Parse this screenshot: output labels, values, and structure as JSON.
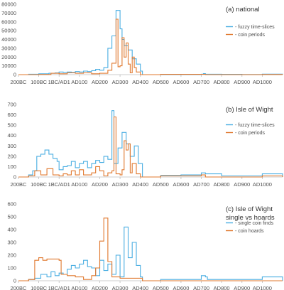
{
  "colors": {
    "blue": "#4aaee2",
    "orange": "#e0782e",
    "axis": "#bdbdbd",
    "text": "#4d4d4d"
  },
  "chart_data": [
    {
      "type": "line",
      "title": "(a) national",
      "title_line2": "",
      "x_tick_labels": [
        "200BC",
        "100BC",
        "1BC/AD1",
        "AD100",
        "AD200",
        "AD300",
        "AD400",
        "AD500",
        "AD600",
        "AD700",
        "AD800",
        "AD900",
        "AD1000"
      ],
      "x_range": [
        -200,
        1100
      ],
      "ylim": [
        0,
        80000
      ],
      "y_ticks": [
        0,
        10000,
        20000,
        30000,
        40000,
        50000,
        60000,
        70000,
        80000
      ],
      "legend_position": "right",
      "series": [
        {
          "name": "- fuzzy time-slices",
          "color": "#4aaee2",
          "points": [
            [
              -200,
              0
            ],
            [
              -150,
              500
            ],
            [
              -100,
              1000
            ],
            [
              -50,
              1500
            ],
            [
              -20,
              2000
            ],
            [
              0,
              3000
            ],
            [
              20,
              2500
            ],
            [
              40,
              3000
            ],
            [
              60,
              2500
            ],
            [
              80,
              3500
            ],
            [
              100,
              3000
            ],
            [
              120,
              4000
            ],
            [
              140,
              3500
            ],
            [
              160,
              4500
            ],
            [
              180,
              6000
            ],
            [
              200,
              5000
            ],
            [
              220,
              8000
            ],
            [
              240,
              30000
            ],
            [
              260,
              44000
            ],
            [
              280,
              73000
            ],
            [
              300,
              52000
            ],
            [
              310,
              40000
            ],
            [
              320,
              33000
            ],
            [
              340,
              28000
            ],
            [
              360,
              18000
            ],
            [
              380,
              12000
            ],
            [
              400,
              4000
            ],
            [
              410,
              0
            ],
            [
              500,
              200
            ],
            [
              600,
              200
            ],
            [
              700,
              500
            ],
            [
              710,
              1200
            ],
            [
              720,
              500
            ],
            [
              800,
              300
            ],
            [
              900,
              200
            ],
            [
              1000,
              600
            ],
            [
              1100,
              0
            ]
          ]
        },
        {
          "name": "- coin periods",
          "color": "#e0782e",
          "points": [
            [
              -200,
              0
            ],
            [
              -100,
              200
            ],
            [
              -40,
              1500
            ],
            [
              0,
              1000
            ],
            [
              40,
              2000
            ],
            [
              80,
              1500
            ],
            [
              120,
              2000
            ],
            [
              160,
              1000
            ],
            [
              200,
              1500
            ],
            [
              240,
              5000
            ],
            [
              260,
              13000
            ],
            [
              280,
              63000
            ],
            [
              290,
              9000
            ],
            [
              300,
              10000
            ],
            [
              310,
              42000
            ],
            [
              320,
              20000
            ],
            [
              330,
              36000
            ],
            [
              340,
              12000
            ],
            [
              350,
              2000
            ],
            [
              360,
              20000
            ],
            [
              370,
              8000
            ],
            [
              380,
              3000
            ],
            [
              400,
              0
            ],
            [
              500,
              300
            ],
            [
              700,
              400
            ],
            [
              720,
              0
            ],
            [
              1000,
              200
            ],
            [
              1100,
              0
            ]
          ]
        }
      ]
    },
    {
      "type": "line",
      "title": "(b) Isle of Wight",
      "title_line2": "",
      "x_tick_labels": [
        "200BC",
        "100BC",
        "1BC/AD1",
        "AD100",
        "AD200",
        "AD300",
        "AD400",
        "AD500",
        "AD600",
        "AD700",
        "AD800",
        "AD900",
        "AD1000"
      ],
      "x_range": [
        -200,
        1100
      ],
      "ylim": [
        0,
        700
      ],
      "y_ticks": [
        0,
        100,
        200,
        300,
        400,
        500,
        600,
        700
      ],
      "legend_position": "right",
      "series": [
        {
          "name": "- fuzzy time-slices",
          "color": "#4aaee2",
          "points": [
            [
              -200,
              0
            ],
            [
              -150,
              20
            ],
            [
              -130,
              60
            ],
            [
              -110,
              200
            ],
            [
              -90,
              220
            ],
            [
              -70,
              260
            ],
            [
              -50,
              220
            ],
            [
              -30,
              180
            ],
            [
              -10,
              150
            ],
            [
              0,
              70
            ],
            [
              20,
              100
            ],
            [
              40,
              110
            ],
            [
              60,
              150
            ],
            [
              80,
              90
            ],
            [
              100,
              130
            ],
            [
              120,
              150
            ],
            [
              140,
              90
            ],
            [
              160,
              130
            ],
            [
              180,
              160
            ],
            [
              200,
              140
            ],
            [
              220,
              200
            ],
            [
              240,
              170
            ],
            [
              260,
              640
            ],
            [
              270,
              130
            ],
            [
              290,
              280
            ],
            [
              310,
              430
            ],
            [
              330,
              320
            ],
            [
              350,
              200
            ],
            [
              370,
              300
            ],
            [
              390,
              130
            ],
            [
              410,
              0
            ],
            [
              500,
              15
            ],
            [
              600,
              20
            ],
            [
              700,
              40
            ],
            [
              720,
              30
            ],
            [
              800,
              10
            ],
            [
              900,
              10
            ],
            [
              1000,
              30
            ],
            [
              1100,
              0
            ]
          ]
        },
        {
          "name": "- coin periods",
          "color": "#e0782e",
          "points": [
            [
              -200,
              0
            ],
            [
              -150,
              10
            ],
            [
              -120,
              60
            ],
            [
              -90,
              20
            ],
            [
              -60,
              80
            ],
            [
              -30,
              20
            ],
            [
              0,
              10
            ],
            [
              20,
              30
            ],
            [
              40,
              20
            ],
            [
              60,
              60
            ],
            [
              80,
              20
            ],
            [
              100,
              70
            ],
            [
              120,
              20
            ],
            [
              140,
              20
            ],
            [
              160,
              40
            ],
            [
              180,
              100
            ],
            [
              200,
              60
            ],
            [
              220,
              10
            ],
            [
              240,
              40
            ],
            [
              260,
              60
            ],
            [
              270,
              580
            ],
            [
              280,
              30
            ],
            [
              300,
              20
            ],
            [
              310,
              70
            ],
            [
              320,
              350
            ],
            [
              330,
              260
            ],
            [
              340,
              320
            ],
            [
              350,
              40
            ],
            [
              360,
              130
            ],
            [
              380,
              30
            ],
            [
              400,
              0
            ],
            [
              500,
              10
            ],
            [
              700,
              20
            ],
            [
              720,
              0
            ],
            [
              1000,
              10
            ],
            [
              1100,
              0
            ]
          ]
        }
      ]
    },
    {
      "type": "line",
      "title": "(c) Isle of Wight",
      "title_line2": "single vs hoards",
      "x_tick_labels": [
        "200BC",
        "100BC",
        "1BC/AD1",
        "AD100",
        "AD200",
        "AD300",
        "AD400",
        "AD500",
        "AD600",
        "AD700",
        "AD800",
        "AD900",
        "AD1000"
      ],
      "x_range": [
        -200,
        1100
      ],
      "ylim": [
        0,
        600
      ],
      "y_ticks": [
        0,
        100,
        200,
        300,
        400,
        500,
        600
      ],
      "legend_position": "right",
      "series": [
        {
          "name": "- single coin finds",
          "color": "#4aaee2",
          "points": [
            [
              -200,
              0
            ],
            [
              -150,
              10
            ],
            [
              -120,
              20
            ],
            [
              -90,
              50
            ],
            [
              -60,
              30
            ],
            [
              -40,
              70
            ],
            [
              -20,
              40
            ],
            [
              0,
              60
            ],
            [
              20,
              50
            ],
            [
              40,
              90
            ],
            [
              60,
              120
            ],
            [
              80,
              100
            ],
            [
              100,
              130
            ],
            [
              120,
              160
            ],
            [
              140,
              110
            ],
            [
              160,
              100
            ],
            [
              180,
              40
            ],
            [
              200,
              160
            ],
            [
              220,
              80
            ],
            [
              240,
              130
            ],
            [
              260,
              50
            ],
            [
              280,
              200
            ],
            [
              300,
              30
            ],
            [
              320,
              420
            ],
            [
              340,
              180
            ],
            [
              360,
              300
            ],
            [
              380,
              120
            ],
            [
              400,
              30
            ],
            [
              410,
              0
            ],
            [
              500,
              10
            ],
            [
              600,
              10
            ],
            [
              700,
              40
            ],
            [
              720,
              30
            ],
            [
              730,
              10
            ],
            [
              800,
              10
            ],
            [
              900,
              10
            ],
            [
              1000,
              30
            ],
            [
              1100,
              0
            ]
          ]
        },
        {
          "name": "- coin hoards",
          "color": "#e0782e",
          "points": [
            [
              -200,
              0
            ],
            [
              -150,
              10
            ],
            [
              -120,
              160
            ],
            [
              -100,
              180
            ],
            [
              -80,
              160
            ],
            [
              -60,
              170
            ],
            [
              0,
              160
            ],
            [
              10,
              50
            ],
            [
              40,
              40
            ],
            [
              80,
              30
            ],
            [
              120,
              10
            ],
            [
              160,
              40
            ],
            [
              180,
              100
            ],
            [
              200,
              310
            ],
            [
              220,
              490
            ],
            [
              240,
              150
            ],
            [
              260,
              30
            ],
            [
              300,
              20
            ],
            [
              400,
              20
            ],
            [
              410,
              0
            ],
            [
              500,
              0
            ],
            [
              1100,
              0
            ]
          ]
        }
      ]
    }
  ]
}
